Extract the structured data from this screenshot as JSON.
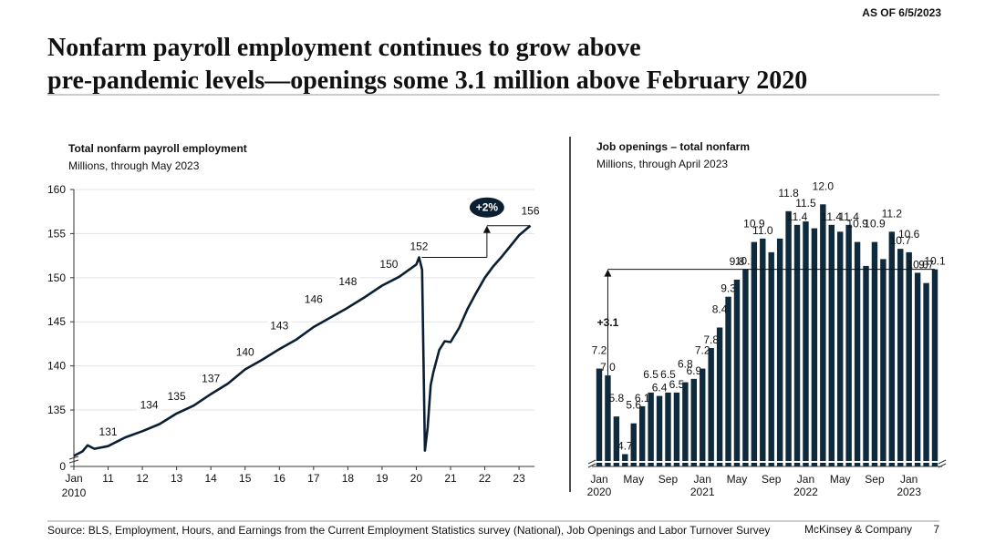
{
  "header": {
    "as_of": "AS OF 6/5/2023",
    "title_lines": [
      "Nonfarm payroll employment continues to grow above",
      "pre-pandemic levels—openings some 3.1 million above February 2020"
    ]
  },
  "footer": {
    "source": "Source: BLS, Employment, Hours, and Earnings from the Current Employment Statistics survey (National), Job Openings and Labor Turnover Survey",
    "brand": "McKinsey & Company",
    "page": "7"
  },
  "chart_data": [
    {
      "type": "line",
      "title": "Total nonfarm payroll employment",
      "subtitle": "Millions, through May 2023",
      "color": "#0b1f33",
      "grid": true,
      "axis_break": true,
      "x": [
        2010.0,
        2010.25,
        2010.4,
        2010.6,
        2011.0,
        2011.5,
        2012.0,
        2012.5,
        2013.0,
        2013.5,
        2014.0,
        2014.5,
        2015.0,
        2015.5,
        2016.0,
        2016.5,
        2017.0,
        2017.5,
        2018.0,
        2018.5,
        2019.0,
        2019.5,
        2020.0,
        2020.08,
        2020.17,
        2020.25,
        2020.33,
        2020.42,
        2020.5,
        2020.67,
        2020.83,
        2021.0,
        2021.25,
        2021.5,
        2021.75,
        2022.0,
        2022.25,
        2022.5,
        2022.75,
        2023.0,
        2023.33
      ],
      "values": [
        129.8,
        130.3,
        131.0,
        130.6,
        130.9,
        131.9,
        132.6,
        133.4,
        134.6,
        135.5,
        136.8,
        138.0,
        139.6,
        140.7,
        141.9,
        143.0,
        144.4,
        145.5,
        146.6,
        147.8,
        149.1,
        150.1,
        151.5,
        152.3,
        150.9,
        130.4,
        133.0,
        137.8,
        139.3,
        141.8,
        142.8,
        142.7,
        144.3,
        146.5,
        148.3,
        150.0,
        151.3,
        152.4,
        153.6,
        154.8,
        155.9
      ],
      "annotations": [
        {
          "x": 2011.0,
          "y": 131
        },
        {
          "x": 2012.2,
          "y": 134
        },
        {
          "x": 2013.0,
          "y": 135
        },
        {
          "x": 2014.0,
          "y": 137
        },
        {
          "x": 2015.0,
          "y": 140
        },
        {
          "x": 2016.0,
          "y": 143
        },
        {
          "x": 2017.0,
          "y": 146
        },
        {
          "x": 2018.0,
          "y": 148
        },
        {
          "x": 2019.2,
          "y": 150
        },
        {
          "x": 2020.08,
          "y": 152
        },
        {
          "x": 2023.33,
          "y": 156
        }
      ],
      "callout_label": "+2%",
      "xlim": [
        2010,
        2023.45
      ],
      "xticks": [
        {
          "value": 2010,
          "label": "Jan"
        },
        2011,
        2012,
        2013,
        2014,
        2015,
        2016,
        2017,
        2018,
        2019,
        2020,
        2021,
        2022,
        2023
      ],
      "xtick_labels": [
        null,
        "11",
        "12",
        "13",
        "14",
        "15",
        "16",
        "17",
        "18",
        "19",
        "20",
        "21",
        "22",
        "23"
      ],
      "xtick_sublabel": "2010",
      "ylim": [
        128.6,
        160
      ],
      "yticks": [
        0,
        135,
        140,
        145,
        150,
        155,
        160
      ]
    },
    {
      "type": "bar",
      "title": "Job openings – total nonfarm",
      "subtitle": "Millions, through April 2023",
      "color": "#0e2a3c",
      "axis_break": true,
      "categories": [
        "Jan",
        null,
        null,
        null,
        "May",
        null,
        null,
        null,
        "Sep",
        null,
        null,
        null,
        "Jan",
        null,
        null,
        null,
        "May",
        null,
        null,
        null,
        "Sep",
        null,
        null,
        null,
        "Jan",
        null,
        null,
        null,
        "May",
        null,
        null,
        null,
        "Sep",
        null,
        null,
        null,
        "Jan",
        null,
        null,
        null
      ],
      "category_years": [
        "2020",
        null,
        null,
        null,
        null,
        null,
        null,
        null,
        null,
        null,
        null,
        null,
        "2021",
        null,
        null,
        null,
        null,
        null,
        null,
        null,
        null,
        null,
        null,
        null,
        "2022",
        null,
        null,
        null,
        null,
        null,
        null,
        null,
        null,
        null,
        null,
        null,
        "2023",
        null,
        null,
        null
      ],
      "values": [
        7.2,
        7.0,
        5.8,
        4.7,
        5.6,
        6.1,
        6.5,
        6.4,
        6.5,
        6.5,
        6.8,
        6.9,
        7.2,
        7.8,
        8.4,
        9.3,
        9.8,
        10.1,
        10.9,
        11.0,
        10.6,
        11.0,
        11.8,
        11.4,
        11.5,
        11.3,
        12.0,
        11.4,
        11.2,
        11.4,
        10.9,
        10.2,
        10.9,
        10.4,
        11.2,
        10.7,
        10.6,
        10.0,
        9.7,
        10.1
      ],
      "value_labels": [
        "7.2",
        "7.0",
        "5.8",
        "4.7",
        "5.6",
        "6.1",
        "6.5",
        "6.4",
        "6.5",
        "6.5",
        "6.8",
        "6.9",
        "7.2",
        "7.8",
        "8.4",
        "9.3",
        "9.8",
        "10.1",
        "10.9",
        "11.0",
        null,
        null,
        "11.8",
        "11.4",
        "11.5",
        null,
        "12.0",
        "11.4",
        null,
        "11.4",
        "10.9",
        null,
        "10.9",
        null,
        "11.2",
        "10.7",
        "10.6",
        "10.0",
        "9.7",
        "10.1"
      ],
      "callout_label": "+3.1",
      "ylim": [
        4.5,
        12.7
      ]
    }
  ]
}
